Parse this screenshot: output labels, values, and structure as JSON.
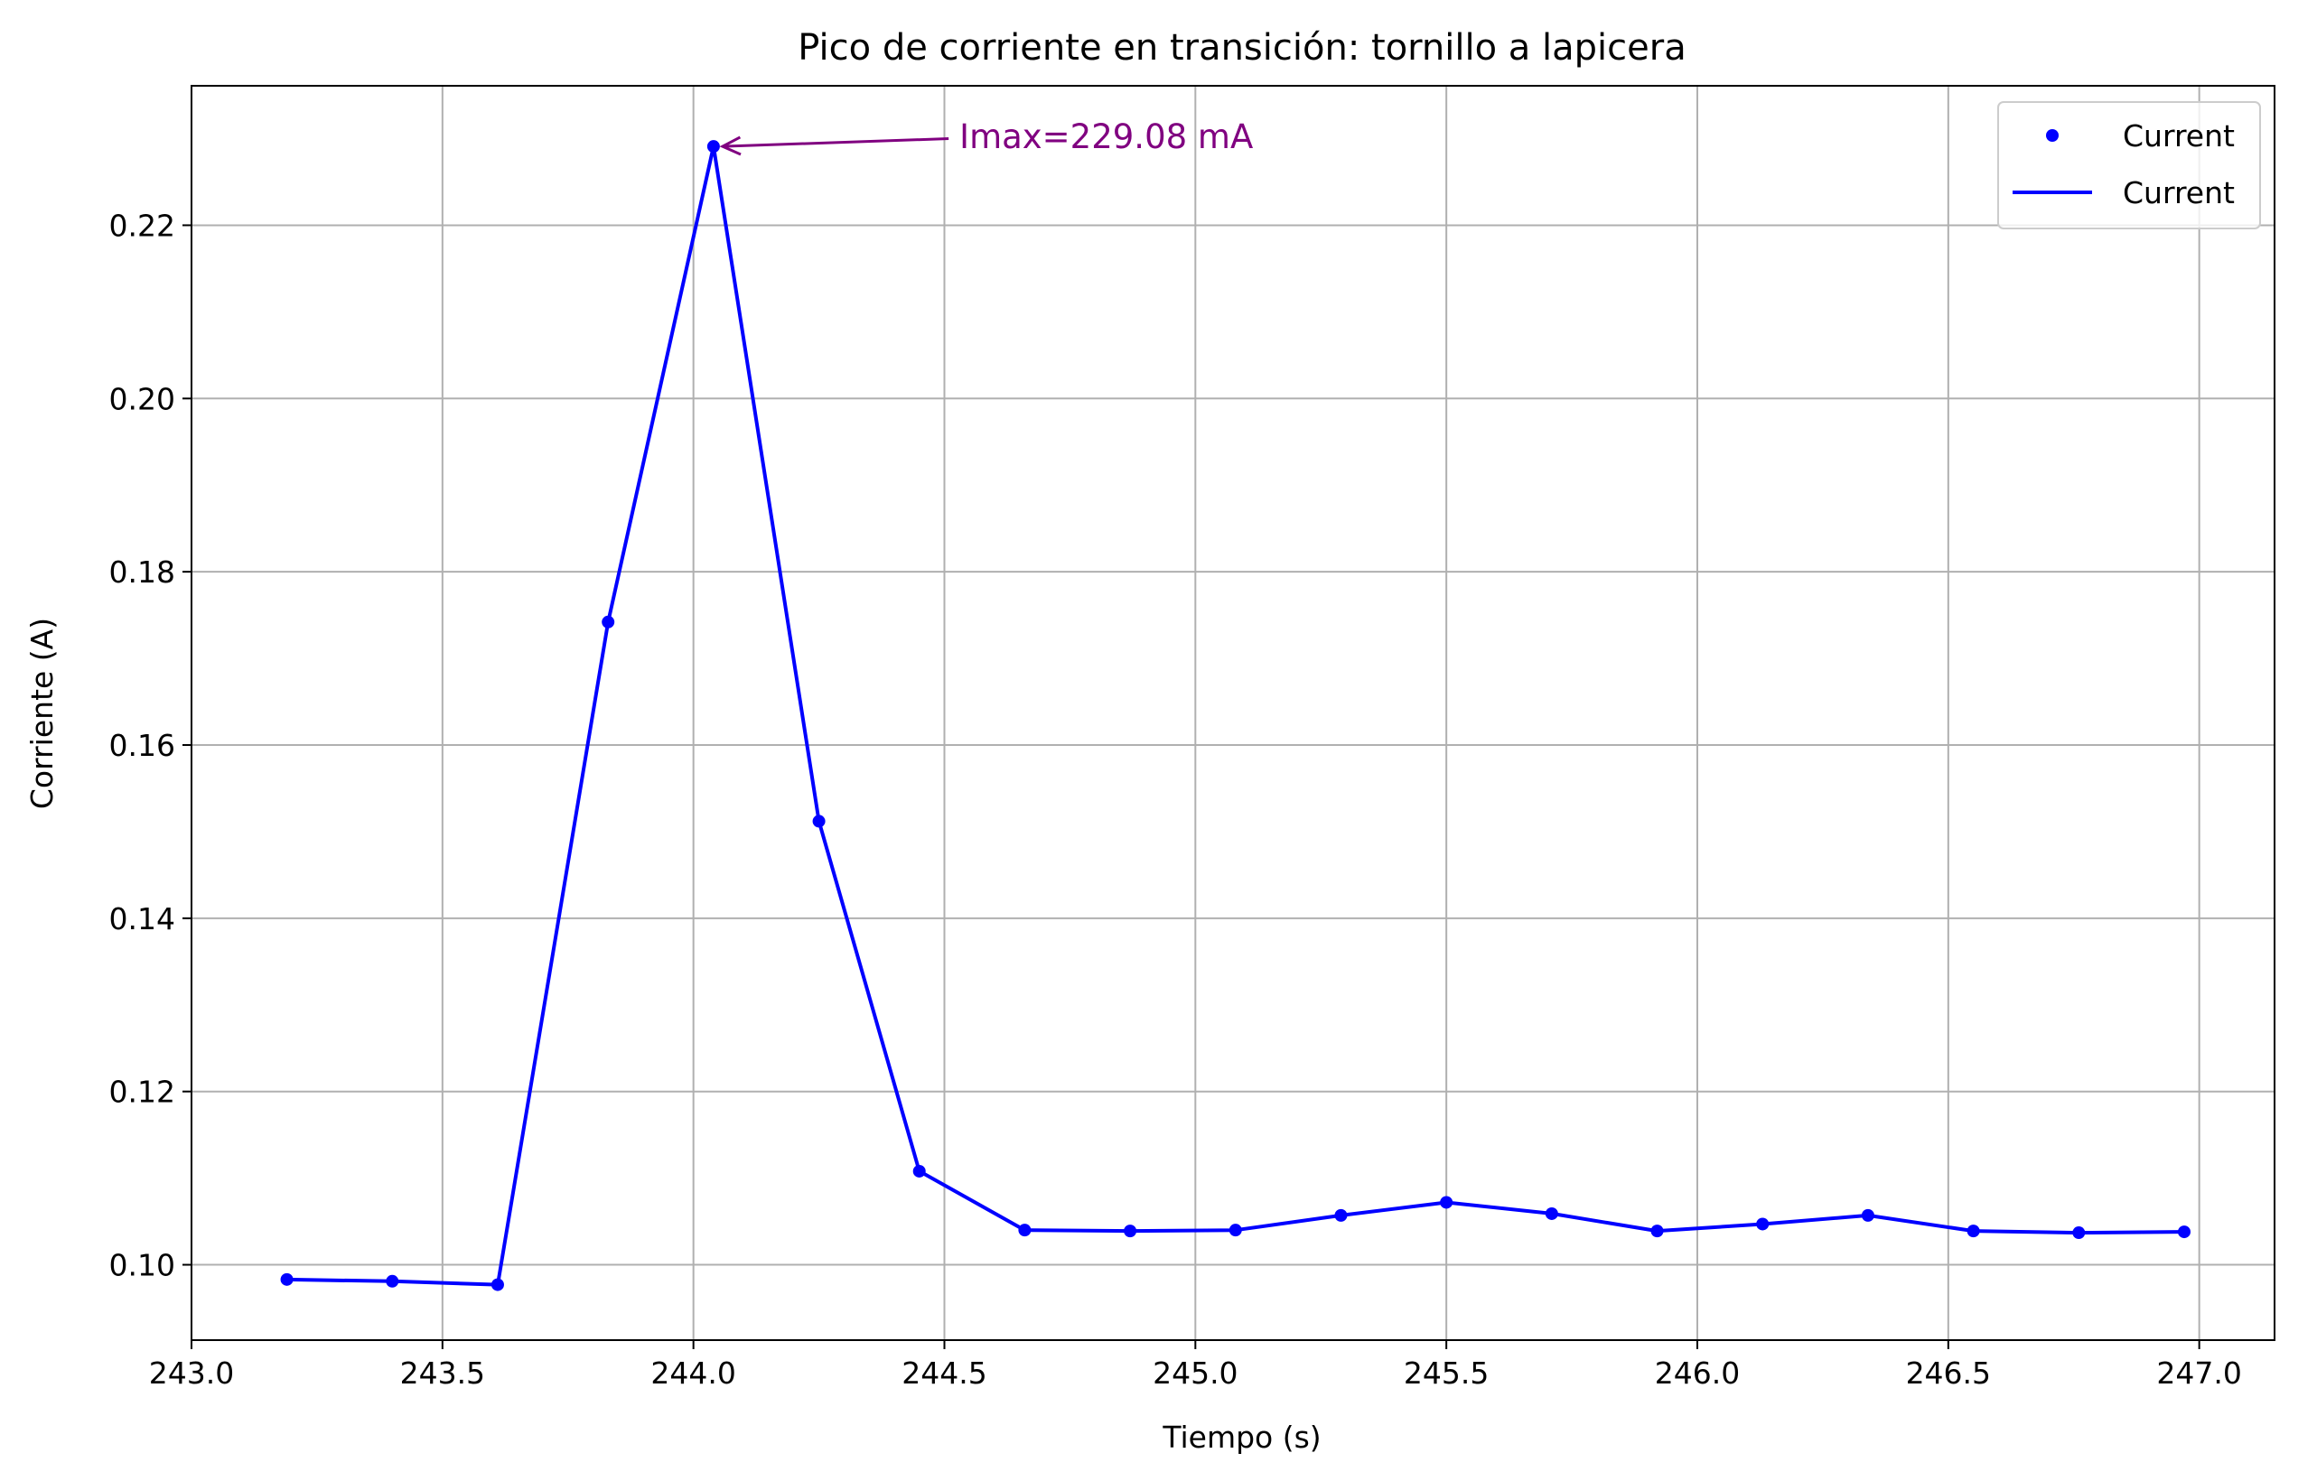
{
  "chart_data": {
    "type": "line",
    "title": "Pico de corriente en transición: tornillo a lapicera",
    "xlabel": "Tiempo (s)",
    "ylabel": "Corriente (A)",
    "xlim": [
      243.0,
      247.15
    ],
    "ylim": [
      0.0913,
      0.2361
    ],
    "xticks": [
      243.0,
      243.5,
      244.0,
      244.5,
      245.0,
      245.5,
      246.0,
      246.5,
      247.0
    ],
    "xtick_labels": [
      "243.0",
      "243.5",
      "244.0",
      "244.5",
      "245.0",
      "245.5",
      "246.0",
      "246.5",
      "247.0"
    ],
    "yticks": [
      0.1,
      0.12,
      0.14,
      0.16,
      0.18,
      0.2,
      0.22
    ],
    "ytick_labels": [
      "0.10",
      "0.12",
      "0.14",
      "0.16",
      "0.18",
      "0.20",
      "0.22"
    ],
    "grid": true,
    "legend_position": "top-right",
    "series": [
      {
        "name": "Current",
        "kind": "scatter",
        "color": "#0000ff",
        "x": [
          243.19,
          243.4,
          243.61,
          243.83,
          244.04,
          244.25,
          244.45,
          244.66,
          244.87,
          245.08,
          245.29,
          245.5,
          245.71,
          245.92,
          246.13,
          246.34,
          246.55,
          246.76,
          246.97
        ],
        "y": [
          0.0983,
          0.0981,
          0.0977,
          0.1742,
          0.2291,
          0.1512,
          0.1108,
          0.104,
          0.1039,
          0.104,
          0.1057,
          0.1072,
          0.1059,
          0.1039,
          0.1047,
          0.1057,
          0.1039,
          0.1037,
          0.1038
        ]
      },
      {
        "name": "Current",
        "kind": "line",
        "color": "#0000ff",
        "x": [
          243.19,
          243.4,
          243.61,
          243.83,
          244.04,
          244.25,
          244.45,
          244.66,
          244.87,
          245.08,
          245.29,
          245.5,
          245.71,
          245.92,
          246.13,
          246.34,
          246.55,
          246.76,
          246.97
        ],
        "y": [
          0.0983,
          0.0981,
          0.0977,
          0.1742,
          0.2291,
          0.1512,
          0.1108,
          0.104,
          0.1039,
          0.104,
          0.1057,
          0.1072,
          0.1059,
          0.1039,
          0.1047,
          0.1057,
          0.1039,
          0.1037,
          0.1038
        ]
      }
    ],
    "annotation": {
      "text": "Imax=229.08 mA",
      "color": "#800080",
      "point": [
        244.04,
        0.2291
      ],
      "text_anchor": [
        244.53,
        0.23
      ]
    }
  }
}
